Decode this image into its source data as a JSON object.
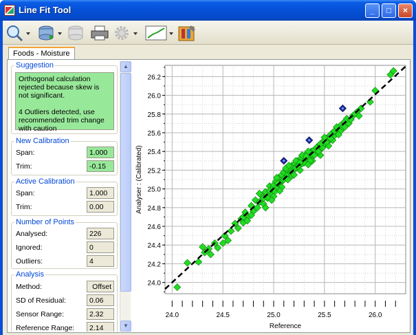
{
  "window": {
    "title": "Line Fit Tool"
  },
  "titlebar_buttons": {
    "minimize": "_",
    "maximize": "□",
    "close": "×"
  },
  "toolbar": {
    "tools": [
      {
        "name": "zoom-tool",
        "icon": "magnifier-icon",
        "dropdown": true
      },
      {
        "name": "database-tool",
        "icon": "database-icon",
        "dropdown": true
      },
      {
        "name": "database-delete-tool",
        "icon": "database-disabled-icon",
        "dropdown": false
      },
      {
        "name": "print-tool",
        "icon": "printer-icon",
        "dropdown": false
      },
      {
        "name": "settings-tool",
        "icon": "gear-icon",
        "dropdown": true
      },
      {
        "name": "line-chart-tool",
        "icon": "line-chart-icon",
        "dropdown": true
      },
      {
        "name": "tools-tool",
        "icon": "toolbox-icon",
        "dropdown": false
      }
    ]
  },
  "tab": {
    "label": "Foods - Moisture"
  },
  "suggestion": {
    "title": "Suggestion",
    "text": "Orthogonal calculation rejected because skew is not significant.\n\n4 Outliers detected, use recommended trim change with caution"
  },
  "new_calibration": {
    "title": "New Calibration",
    "span_label": "Span:",
    "span_value": "1.000",
    "trim_label": "Trim:",
    "trim_value": "-0.15"
  },
  "active_calibration": {
    "title": "Active Calibration",
    "span_label": "Span:",
    "span_value": "1.000",
    "trim_label": "Trim:",
    "trim_value": "0.00"
  },
  "points": {
    "title": "Number of Points",
    "analysed_label": "Analysed:",
    "analysed_value": "226",
    "ignored_label": "Ignored:",
    "ignored_value": "0",
    "outliers_label": "Outliers:",
    "outliers_value": "4"
  },
  "analysis": {
    "title": "Analysis",
    "method_label": "Method:",
    "method_value": "Offset",
    "sd_label": "SD of Residual:",
    "sd_value": "0.06",
    "sensor_label": "Sensor Range:",
    "sensor_value": "2.32",
    "reference_label": "Reference Range:",
    "reference_value": "2.14"
  },
  "colors": {
    "point_fill": "#22dd22",
    "point_edge": "#118811",
    "outlier_fill": "#1a2a9a",
    "fit_line": "#000000"
  },
  "chart_data": {
    "type": "scatter",
    "xlabel": "Reference",
    "ylabel": "Analyser : (Calibrated)",
    "xlim": [
      23.93,
      26.3
    ],
    "ylim": [
      23.88,
      26.32
    ],
    "xticks": [
      24.0,
      24.5,
      25.0,
      25.5,
      26.0
    ],
    "yticks": [
      24.0,
      24.2,
      24.4,
      24.6,
      24.8,
      25.0,
      25.2,
      25.4,
      25.6,
      25.8,
      26.0,
      26.2
    ],
    "grid": true,
    "fit_line": {
      "x": [
        23.93,
        26.3
      ],
      "y": [
        23.93,
        26.31
      ]
    },
    "series": [
      {
        "marker": "diamond",
        "points": [
          [
            24.05,
            23.95
          ],
          [
            24.15,
            24.21
          ],
          [
            24.26,
            24.22
          ],
          [
            24.3,
            24.38
          ],
          [
            24.32,
            24.32
          ],
          [
            24.36,
            24.36
          ],
          [
            24.38,
            24.3
          ],
          [
            24.42,
            24.42
          ],
          [
            24.45,
            24.37
          ],
          [
            24.5,
            24.42
          ],
          [
            24.52,
            24.5
          ],
          [
            24.55,
            24.45
          ],
          [
            24.58,
            24.55
          ],
          [
            24.62,
            24.63
          ],
          [
            24.65,
            24.58
          ],
          [
            24.68,
            24.68
          ],
          [
            24.7,
            24.64
          ],
          [
            24.72,
            24.75
          ],
          [
            24.75,
            24.7
          ],
          [
            24.78,
            24.82
          ],
          [
            24.8,
            24.76
          ],
          [
            24.82,
            24.88
          ],
          [
            24.84,
            24.8
          ],
          [
            24.86,
            24.86
          ],
          [
            24.88,
            24.93
          ],
          [
            24.9,
            24.84
          ],
          [
            24.92,
            24.97
          ],
          [
            24.94,
            24.9
          ],
          [
            24.96,
            25.03
          ],
          [
            24.97,
            24.95
          ],
          [
            24.98,
            25.0
          ],
          [
            25.0,
            25.04
          ],
          [
            25.01,
            24.97
          ],
          [
            25.02,
            25.08
          ],
          [
            25.04,
            25.02
          ],
          [
            25.05,
            25.12
          ],
          [
            25.06,
            25.06
          ],
          [
            25.08,
            25.15
          ],
          [
            25.09,
            25.09
          ],
          [
            25.1,
            25.18
          ],
          [
            25.12,
            25.12
          ],
          [
            25.13,
            25.2
          ],
          [
            25.14,
            25.15
          ],
          [
            25.16,
            25.22
          ],
          [
            25.17,
            25.17
          ],
          [
            25.18,
            25.25
          ],
          [
            25.2,
            25.2
          ],
          [
            25.21,
            25.27
          ],
          [
            25.22,
            25.23
          ],
          [
            25.24,
            25.3
          ],
          [
            25.25,
            25.25
          ],
          [
            25.27,
            25.33
          ],
          [
            25.28,
            25.27
          ],
          [
            25.3,
            25.35
          ],
          [
            25.32,
            25.3
          ],
          [
            25.33,
            25.38
          ],
          [
            25.35,
            25.33
          ],
          [
            25.37,
            25.4
          ],
          [
            25.38,
            25.36
          ],
          [
            25.4,
            25.42
          ],
          [
            25.42,
            25.38
          ],
          [
            25.44,
            25.46
          ],
          [
            25.46,
            25.42
          ],
          [
            25.48,
            25.5
          ],
          [
            25.5,
            25.47
          ],
          [
            25.52,
            25.54
          ],
          [
            25.55,
            25.52
          ],
          [
            25.58,
            25.6
          ],
          [
            25.6,
            25.57
          ],
          [
            25.63,
            25.65
          ],
          [
            25.66,
            25.62
          ],
          [
            25.7,
            25.72
          ],
          [
            25.74,
            25.7
          ],
          [
            25.78,
            25.78
          ],
          [
            25.82,
            25.82
          ],
          [
            25.86,
            25.86
          ],
          [
            25.95,
            25.93
          ],
          [
            26.0,
            26.05
          ],
          [
            26.15,
            26.22
          ],
          [
            26.18,
            26.26
          ],
          [
            24.78,
            24.72
          ],
          [
            24.86,
            24.95
          ],
          [
            24.92,
            24.8
          ],
          [
            25.0,
            24.92
          ],
          [
            25.03,
            25.12
          ],
          [
            25.08,
            25.02
          ],
          [
            25.12,
            25.22
          ],
          [
            25.18,
            25.14
          ],
          [
            25.22,
            25.3
          ],
          [
            25.26,
            25.2
          ],
          [
            25.3,
            25.28
          ],
          [
            25.34,
            25.4
          ],
          [
            25.38,
            25.3
          ],
          [
            25.42,
            25.44
          ],
          [
            25.46,
            25.36
          ],
          [
            25.5,
            25.55
          ],
          [
            25.54,
            25.46
          ],
          [
            25.58,
            25.52
          ],
          [
            25.62,
            25.6
          ],
          [
            25.66,
            25.68
          ],
          [
            24.7,
            24.7
          ],
          [
            24.74,
            24.66
          ],
          [
            24.96,
            24.98
          ],
          [
            25.06,
            24.98
          ],
          [
            25.1,
            25.1
          ],
          [
            25.15,
            25.25
          ],
          [
            25.2,
            25.15
          ],
          [
            25.24,
            25.24
          ],
          [
            25.28,
            25.36
          ],
          [
            25.32,
            25.35
          ],
          [
            25.36,
            25.3
          ],
          [
            25.4,
            25.36
          ],
          [
            25.44,
            25.4
          ],
          [
            25.48,
            25.44
          ],
          [
            25.52,
            25.5
          ],
          [
            25.56,
            25.58
          ],
          [
            25.6,
            25.62
          ],
          [
            25.64,
            25.58
          ],
          [
            25.68,
            25.66
          ],
          [
            25.72,
            25.75
          ],
          [
            25.76,
            25.74
          ],
          [
            25.8,
            25.8
          ],
          [
            25.84,
            25.78
          ],
          [
            24.9,
            24.9
          ],
          [
            24.98,
            24.88
          ],
          [
            25.04,
            25.06
          ],
          [
            25.14,
            25.1
          ],
          [
            25.26,
            25.28
          ],
          [
            25.34,
            25.26
          ],
          [
            25.46,
            25.48
          ],
          [
            25.56,
            25.54
          ],
          [
            25.62,
            25.66
          ],
          [
            25.7,
            25.66
          ]
        ]
      },
      {
        "marker": "outlier",
        "points": [
          [
            25.1,
            25.3
          ],
          [
            25.35,
            25.52
          ],
          [
            25.68,
            25.86
          ]
        ]
      }
    ]
  }
}
